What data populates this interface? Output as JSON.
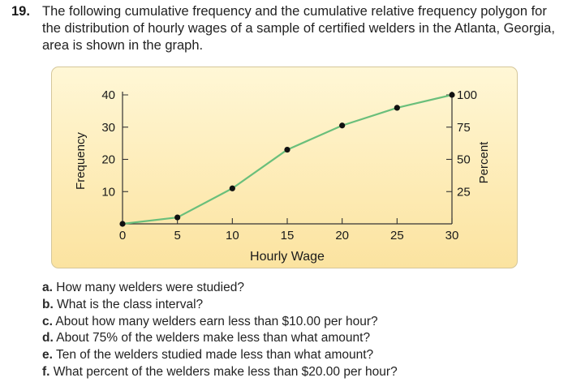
{
  "problem": {
    "number": "19.",
    "text": "The following cumulative frequency and the cumulative relative frequency polygon for the distribution of hourly wages of a sample of certified welders in the Atlanta, Georgia, area is shown in the graph."
  },
  "chart_data": {
    "type": "line",
    "xlabel": "Hourly Wage",
    "ylabel": "Frequency",
    "y2label": "Percent",
    "x_ticks": [
      "0",
      "5",
      "10",
      "15",
      "20",
      "25",
      "30"
    ],
    "y_ticks": [
      "10",
      "20",
      "30",
      "40"
    ],
    "y2_ticks": [
      "25",
      "50",
      "75",
      "100"
    ],
    "xlim": [
      0,
      30
    ],
    "ylim": [
      0,
      40
    ],
    "y2lim": [
      0,
      100
    ],
    "series": [
      {
        "x": [
          0,
          5,
          10,
          15,
          20,
          25,
          30
        ],
        "y": [
          0,
          2,
          11,
          23,
          30.5,
          36,
          40
        ]
      }
    ],
    "grid": false,
    "line_color": "#6abf7b",
    "marker_color": "#111111"
  },
  "questions": [
    {
      "letter": "a.",
      "text": "How many welders were studied?"
    },
    {
      "letter": "b.",
      "text": "What is the class interval?"
    },
    {
      "letter": "c.",
      "text": "About how many welders earn less than $10.00 per hour?"
    },
    {
      "letter": "d.",
      "text": "About 75% of the welders make less than what amount?"
    },
    {
      "letter": "e.",
      "text": "Ten of the welders studied made less than what amount?"
    },
    {
      "letter": "f.",
      "text": "What percent of the welders make less than $20.00 per hour?"
    }
  ]
}
